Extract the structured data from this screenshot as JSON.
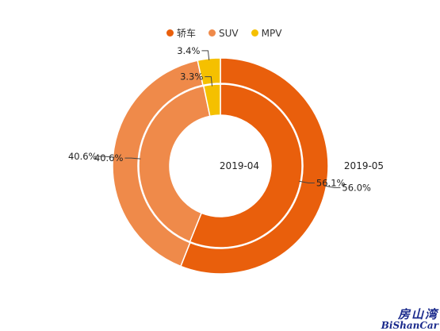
{
  "chart_data": {
    "type": "pie",
    "variant": "nested-donut",
    "categories": [
      "轿车",
      "SUV",
      "MPV"
    ],
    "colors": [
      "#e95f0c",
      "#ef8a4a",
      "#f5c000"
    ],
    "series": [
      {
        "name": "2019-04",
        "ring": "inner",
        "values": [
          56.1,
          40.6,
          3.3
        ],
        "labels": [
          "56.1%",
          "40.6%",
          "3.3%"
        ]
      },
      {
        "name": "2019-05",
        "ring": "outer",
        "values": [
          56.0,
          40.6,
          3.4
        ],
        "labels": [
          "56.0%",
          "40.6%",
          "3.4%"
        ]
      }
    ],
    "legend_position": "top-center"
  },
  "watermark": {
    "line1": "房山湾",
    "line2": "BiShanCar"
  }
}
